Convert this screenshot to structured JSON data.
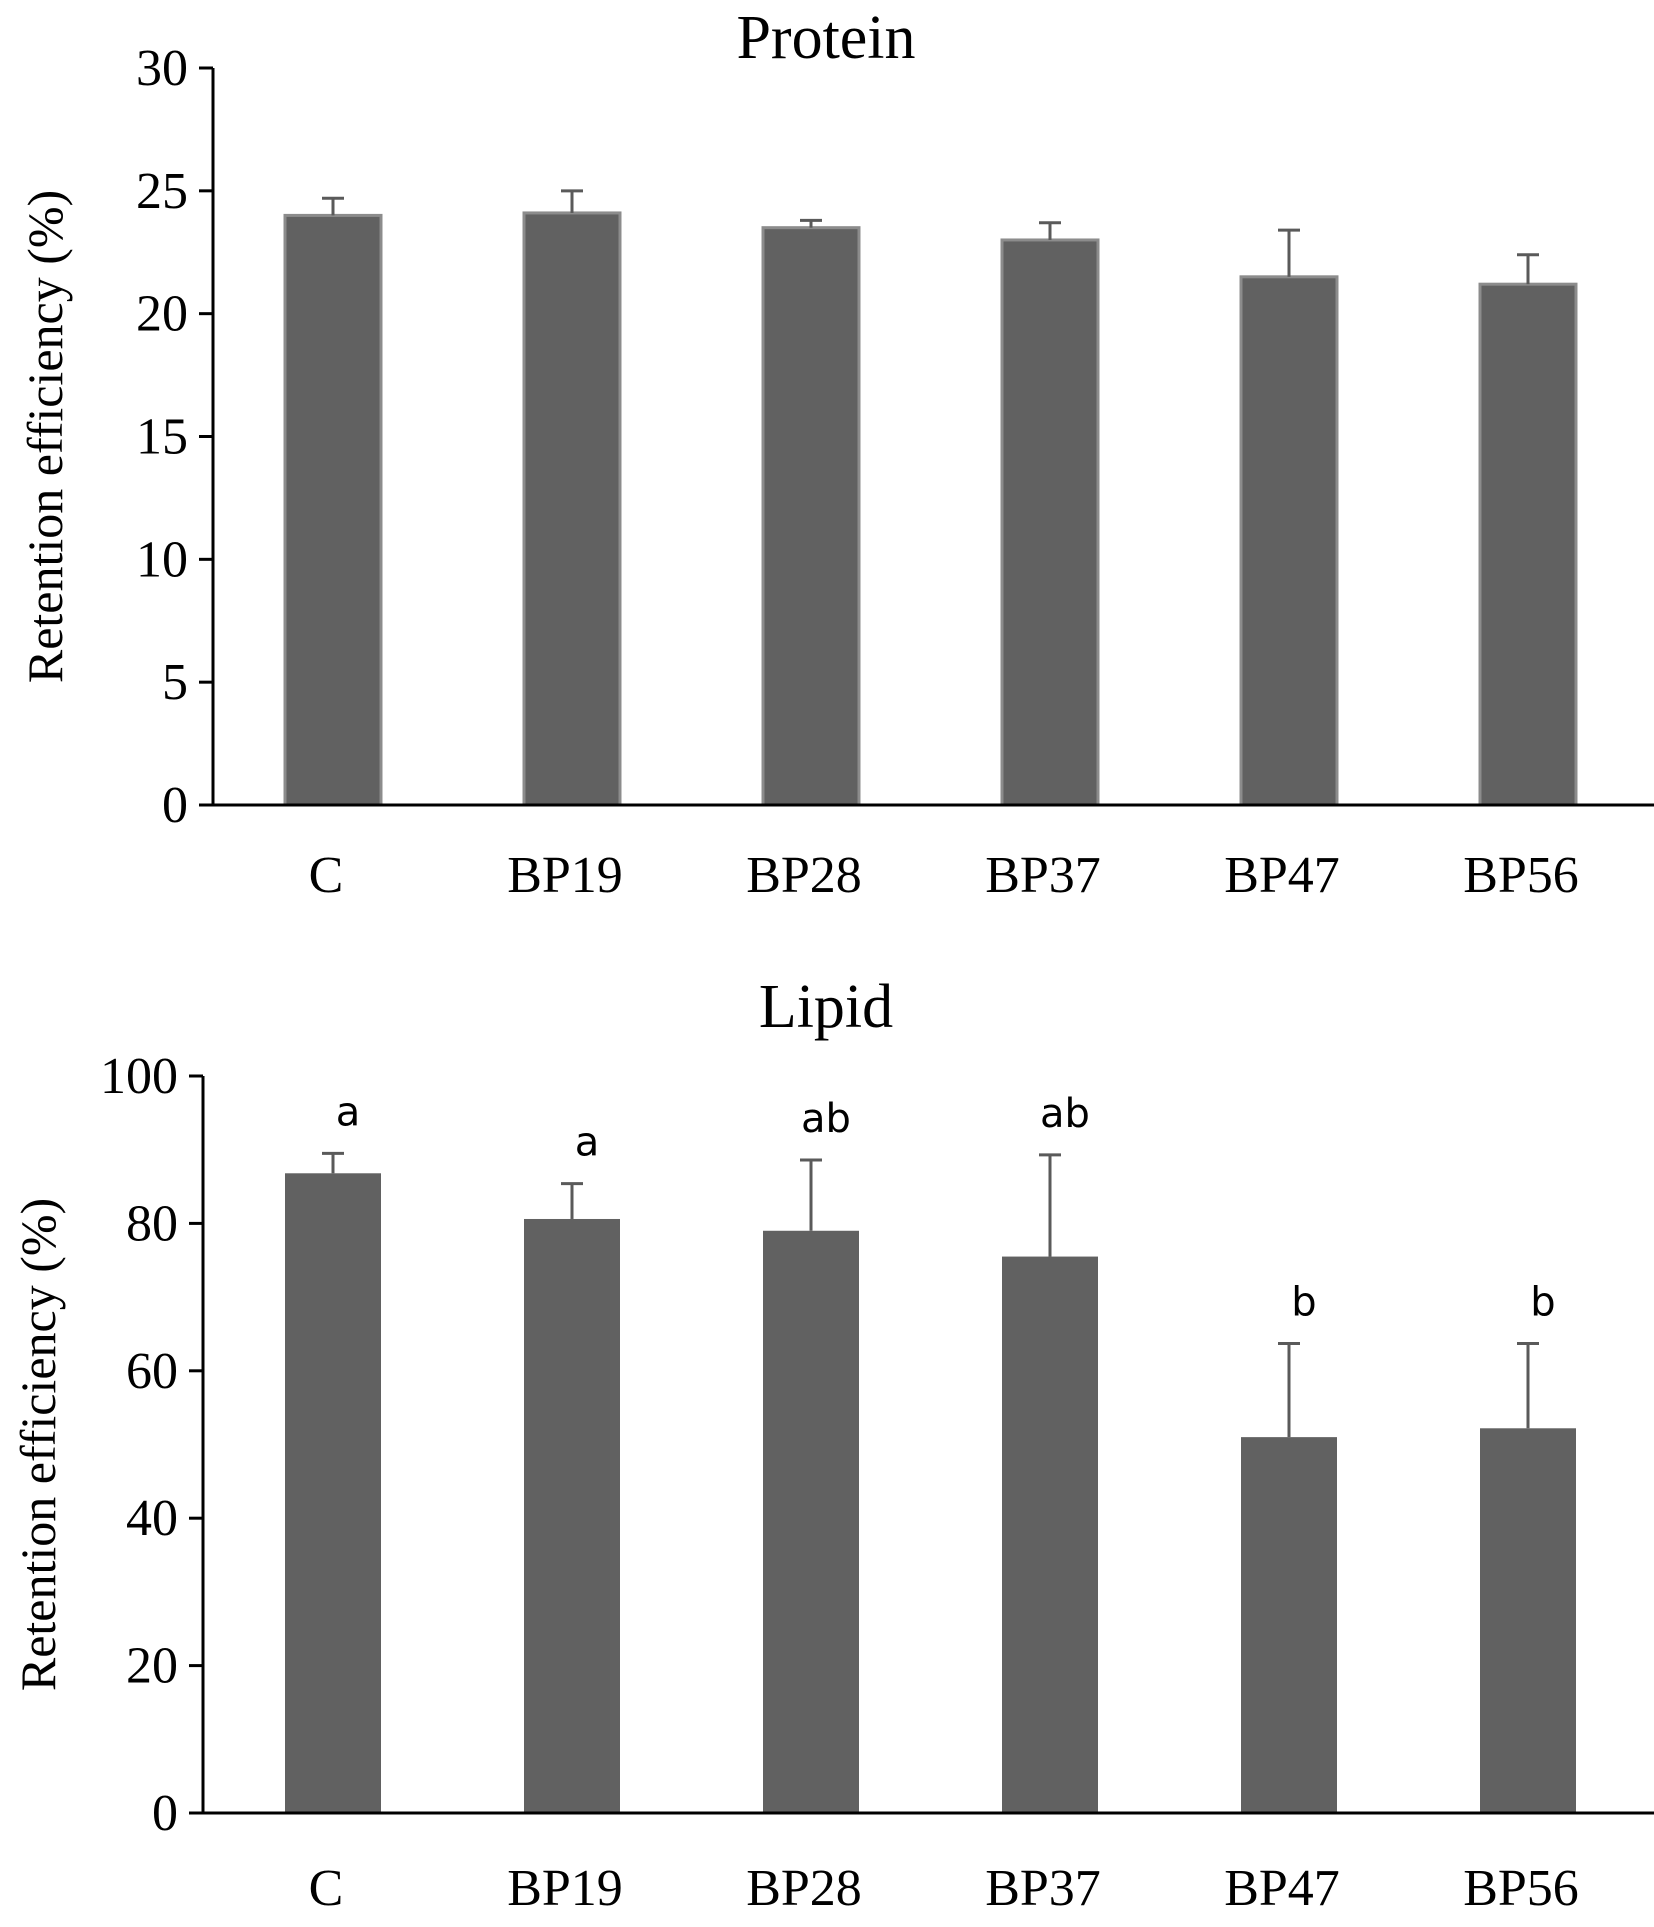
{
  "colors": {
    "bar_fill": "#616161",
    "protein_bar_stroke": "#8c8c8c",
    "error_bar": "#5a5a5a",
    "axis": "#000000"
  },
  "chart_data": [
    {
      "type": "bar",
      "title": "Protein",
      "xlabel": "",
      "ylabel": "Retention efficiency (%)",
      "ylim": [
        0,
        30
      ],
      "yticks": [
        0,
        5,
        10,
        15,
        20,
        25,
        30
      ],
      "categories": [
        "C",
        "BP19",
        "BP28",
        "BP37",
        "BP47",
        "BP56"
      ],
      "values": [
        24.0,
        24.1,
        23.5,
        23.0,
        21.5,
        21.2
      ],
      "errors": [
        0.7,
        0.9,
        0.3,
        0.7,
        1.9,
        1.2
      ],
      "significance": [
        "",
        "",
        "",
        "",
        "",
        ""
      ],
      "grid": false,
      "legend": "none"
    },
    {
      "type": "bar",
      "title": "Lipid",
      "xlabel": "",
      "ylabel": "Retention efficiency (%)",
      "ylim": [
        0,
        100
      ],
      "yticks": [
        0,
        20,
        40,
        60,
        80,
        100
      ],
      "categories": [
        "C",
        "BP19",
        "BP28",
        "BP37",
        "BP47",
        "BP56"
      ],
      "values": [
        86.8,
        80.6,
        79.0,
        75.5,
        51.0,
        52.2
      ],
      "errors": [
        2.7,
        4.8,
        9.6,
        13.8,
        12.7,
        11.5
      ],
      "significance": [
        "a",
        "a",
        "ab",
        "ab",
        "b",
        "b"
      ],
      "grid": false,
      "legend": "none"
    }
  ]
}
